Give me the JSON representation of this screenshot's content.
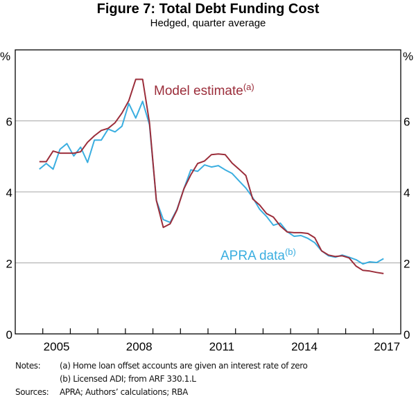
{
  "chart_data": {
    "type": "line",
    "title": "Figure 7: Total Debt Funding Cost",
    "subtitle": "Hedged, quarter average",
    "ylabel_left": "%",
    "ylabel_right": "%",
    "xlabel": "",
    "ylim": [
      0,
      8
    ],
    "yticks": [
      0,
      2,
      4,
      6
    ],
    "xlim": [
      2004.0,
      2018.0
    ],
    "xtick_labels": [
      "2005",
      "2008",
      "2011",
      "2014",
      "2017"
    ],
    "xtick_label_years": [
      2005,
      2008,
      2011,
      2014,
      2017
    ],
    "grid": true,
    "x": [
      "2004Q4",
      "2005Q1",
      "2005Q2",
      "2005Q3",
      "2005Q4",
      "2006Q1",
      "2006Q2",
      "2006Q3",
      "2006Q4",
      "2007Q1",
      "2007Q2",
      "2007Q3",
      "2007Q4",
      "2008Q1",
      "2008Q2",
      "2008Q3",
      "2008Q4",
      "2009Q1",
      "2009Q2",
      "2009Q3",
      "2009Q4",
      "2010Q1",
      "2010Q2",
      "2010Q3",
      "2010Q4",
      "2011Q1",
      "2011Q2",
      "2011Q3",
      "2011Q4",
      "2012Q1",
      "2012Q2",
      "2012Q3",
      "2012Q4",
      "2013Q1",
      "2013Q2",
      "2013Q3",
      "2013Q4",
      "2014Q1",
      "2014Q2",
      "2014Q3",
      "2014Q4",
      "2015Q1",
      "2015Q2",
      "2015Q3",
      "2015Q4",
      "2016Q1",
      "2016Q2",
      "2016Q3",
      "2016Q4",
      "2017Q1",
      "2017Q2"
    ],
    "series": [
      {
        "name": "Model estimate",
        "label": "Model estimate",
        "footnote": "(a)",
        "color": "#9b2d3a",
        "values": [
          4.85,
          4.85,
          5.15,
          5.09,
          5.09,
          5.09,
          5.13,
          5.4,
          5.58,
          5.73,
          5.79,
          5.95,
          6.22,
          6.57,
          7.17,
          7.17,
          5.95,
          3.76,
          3.0,
          3.1,
          3.49,
          4.09,
          4.48,
          4.8,
          4.87,
          5.05,
          5.07,
          5.05,
          4.81,
          4.64,
          4.46,
          3.8,
          3.63,
          3.39,
          3.29,
          3.04,
          2.87,
          2.85,
          2.85,
          2.83,
          2.71,
          2.34,
          2.22,
          2.18,
          2.2,
          2.14,
          1.91,
          1.79,
          1.77,
          1.73,
          1.7
        ]
      },
      {
        "name": "APRA data",
        "label": "APRA data",
        "footnote": "(b)",
        "color": "#3aaee0",
        "values": [
          4.64,
          4.8,
          4.64,
          5.2,
          5.36,
          5.01,
          5.26,
          4.83,
          5.46,
          5.46,
          5.77,
          5.69,
          5.85,
          6.49,
          6.08,
          6.55,
          5.89,
          3.76,
          3.22,
          3.14,
          3.51,
          4.09,
          4.62,
          4.58,
          4.76,
          4.7,
          4.74,
          4.62,
          4.52,
          4.31,
          4.11,
          3.84,
          3.51,
          3.31,
          3.06,
          3.12,
          2.88,
          2.75,
          2.77,
          2.69,
          2.57,
          2.34,
          2.2,
          2.16,
          2.22,
          2.16,
          2.09,
          1.97,
          2.03,
          2.01,
          2.12
        ]
      }
    ]
  },
  "notes": {
    "notes_label": "Notes:",
    "note_a": "(a) Home loan offset accounts are given an interest rate of zero",
    "note_b": "(b) Licensed ADI; from ARF 330.1.L",
    "sources_label": "Sources:",
    "sources": "APRA; Authors’ calculations; RBA"
  }
}
